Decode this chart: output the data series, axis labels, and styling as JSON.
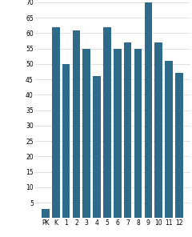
{
  "categories": [
    "PK",
    "K",
    "1",
    "2",
    "3",
    "4",
    "5",
    "6",
    "7",
    "8",
    "9",
    "10",
    "11",
    "12"
  ],
  "values": [
    3,
    62,
    50,
    61,
    55,
    46,
    62,
    55,
    57,
    55,
    70,
    57,
    51,
    47
  ],
  "bar_color": "#2e6b8a",
  "ylim": [
    0,
    70
  ],
  "yticks": [
    5,
    10,
    15,
    20,
    25,
    30,
    35,
    40,
    45,
    50,
    55,
    60,
    65,
    70
  ],
  "background_color": "#ffffff",
  "tick_fontsize": 5.5,
  "xlabel_fontsize": 5.5,
  "bar_width": 0.75
}
